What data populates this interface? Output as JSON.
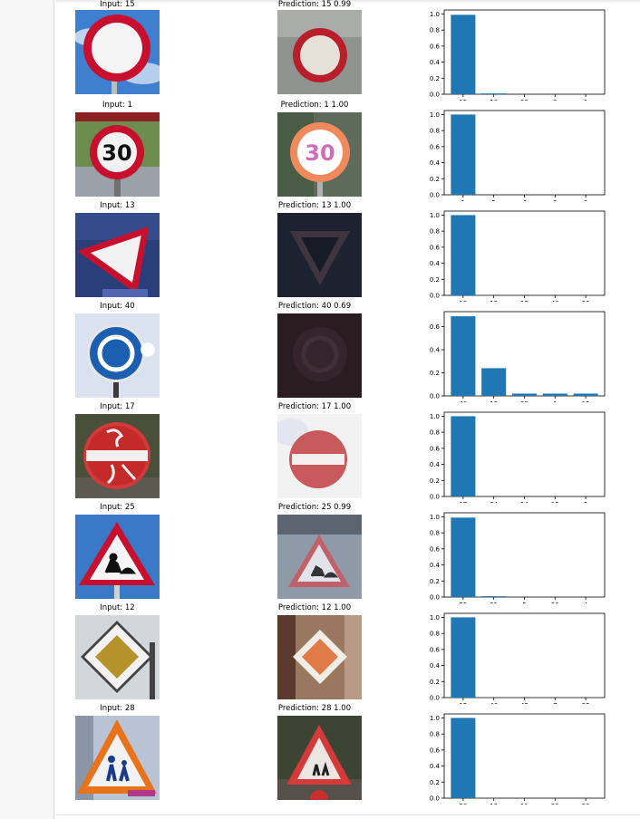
{
  "rows": [
    {
      "input_label": "Input: 15",
      "prediction_label": "Prediction: 15  0.99",
      "chart_data": {
        "type": "bar",
        "categories": [
          "15",
          "13",
          "38",
          "2",
          "1"
        ],
        "values": [
          0.99,
          0.01,
          0.0,
          0.0,
          0.0
        ],
        "ylim": [
          0,
          1.05
        ],
        "yticks": [
          "0.0",
          "0.2",
          "0.4",
          "0.6",
          "0.8",
          "1.0"
        ]
      }
    },
    {
      "input_label": "Input: 1",
      "prediction_label": "Prediction: 1  1.00",
      "chart_data": {
        "type": "bar",
        "categories": [
          "1",
          "5",
          "4",
          "2",
          "0"
        ],
        "values": [
          1.0,
          0.0,
          0.0,
          0.0,
          0.0
        ],
        "ylim": [
          0,
          1.05
        ],
        "yticks": [
          "0.0",
          "0.2",
          "0.4",
          "0.6",
          "0.8",
          "1.0"
        ]
      }
    },
    {
      "input_label": "Input: 13",
      "prediction_label": "Prediction: 13  1.00",
      "chart_data": {
        "type": "bar",
        "categories": [
          "13",
          "12",
          "15",
          "40",
          "39"
        ],
        "values": [
          1.0,
          0.0,
          0.0,
          0.0,
          0.0
        ],
        "ylim": [
          0,
          1.05
        ],
        "yticks": [
          "0.0",
          "0.2",
          "0.4",
          "0.6",
          "0.8",
          "1.0"
        ]
      }
    },
    {
      "input_label": "Input: 40",
      "prediction_label": "Prediction: 40  0.69",
      "chart_data": {
        "type": "bar",
        "categories": [
          "40",
          "12",
          "38",
          "1",
          "15"
        ],
        "values": [
          0.69,
          0.24,
          0.02,
          0.02,
          0.02
        ],
        "ylim": [
          0,
          0.73
        ],
        "yticks": [
          "0.0",
          "0.2",
          "0.4",
          "0.6"
        ]
      }
    },
    {
      "input_label": "Input: 17",
      "prediction_label": "Prediction: 17  1.00",
      "chart_data": {
        "type": "bar",
        "categories": [
          "17",
          "34",
          "14",
          "15",
          "9"
        ],
        "values": [
          1.0,
          0.0,
          0.0,
          0.0,
          0.0
        ],
        "ylim": [
          0,
          1.05
        ],
        "yticks": [
          "0.0",
          "0.2",
          "0.4",
          "0.6",
          "0.8",
          "1.0"
        ]
      }
    },
    {
      "input_label": "Input: 25",
      "prediction_label": "Prediction: 25  0.99",
      "chart_data": {
        "type": "bar",
        "categories": [
          "25",
          "31",
          "5",
          "29",
          "4"
        ],
        "values": [
          0.99,
          0.01,
          0.0,
          0.0,
          0.0
        ],
        "ylim": [
          0,
          1.05
        ],
        "yticks": [
          "0.0",
          "0.2",
          "0.4",
          "0.6",
          "0.8",
          "1.0"
        ]
      }
    },
    {
      "input_label": "Input: 12",
      "prediction_label": "Prediction: 12  1.00",
      "chart_data": {
        "type": "bar",
        "categories": [
          "12",
          "40",
          "42",
          "7",
          "32"
        ],
        "values": [
          1.0,
          0.0,
          0.0,
          0.0,
          0.0
        ],
        "ylim": [
          0,
          1.05
        ],
        "yticks": [
          "0.0",
          "0.2",
          "0.4",
          "0.6",
          "0.8",
          "1.0"
        ]
      }
    },
    {
      "input_label": "Input: 28",
      "prediction_label": "Prediction: 28  1.00",
      "chart_data": {
        "type": "bar",
        "categories": [
          "28",
          "19",
          "11",
          "29",
          "30"
        ],
        "values": [
          1.0,
          0.0,
          0.0,
          0.0,
          0.0
        ],
        "ylim": [
          0,
          1.05
        ],
        "yticks": [
          "0.0",
          "0.2",
          "0.4",
          "0.6",
          "0.8",
          "1.0"
        ]
      }
    }
  ],
  "sign_text": {
    "speed_limit": "30"
  },
  "colors": {
    "bar": "#1f77b4",
    "sign_red": "#c8102e",
    "sign_blue": "#1c5fb0"
  }
}
